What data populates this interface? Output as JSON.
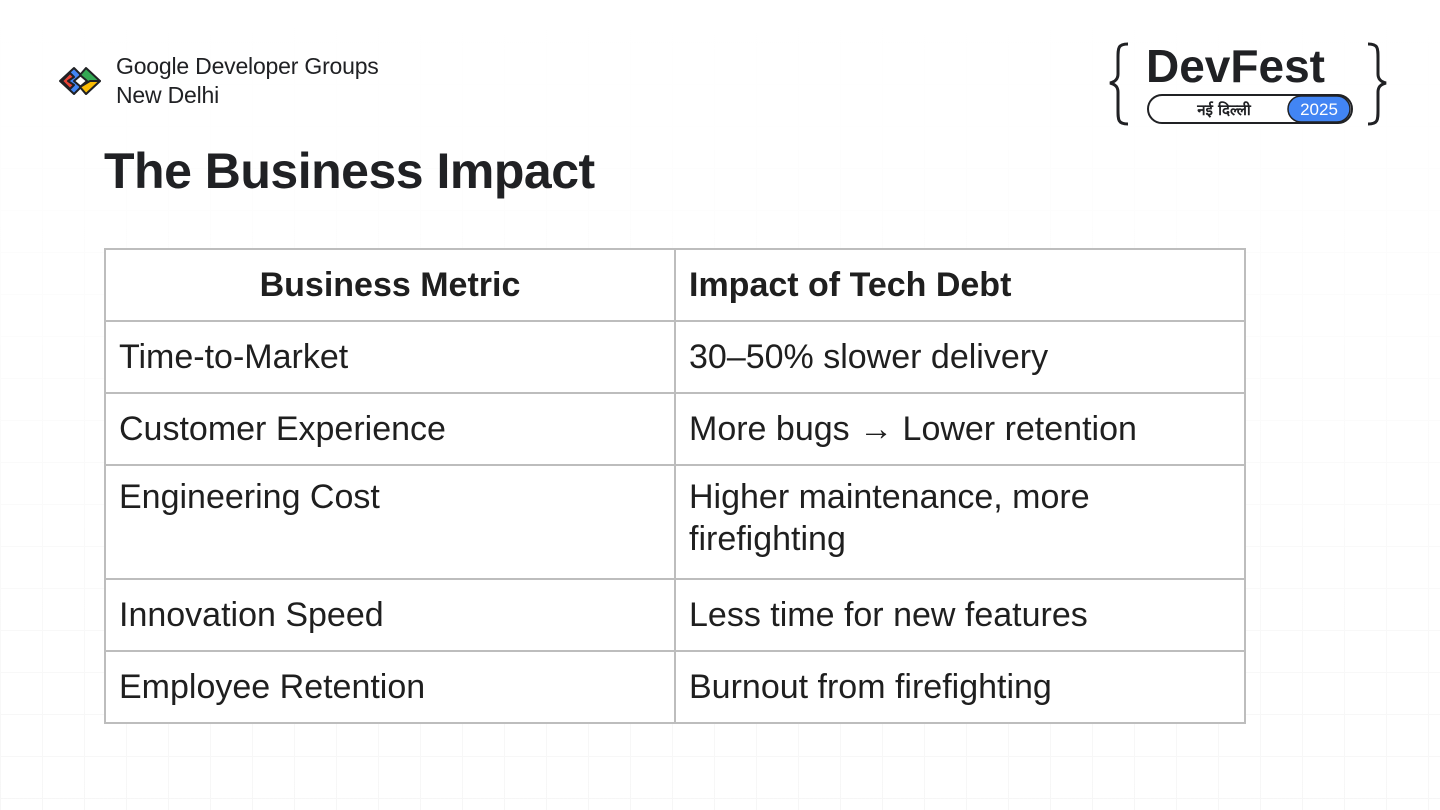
{
  "branding": {
    "gdg_line1": "Google Developer Groups",
    "gdg_line2": "New Delhi",
    "devfest_title": "DevFest",
    "devfest_city": "नई दिल्ली",
    "devfest_year": "2025",
    "colors": {
      "red": "#ea4335",
      "blue": "#4285f4",
      "green": "#34a853",
      "yellow": "#fbbc04",
      "year_pill": "#4285f4"
    }
  },
  "slide": {
    "title": "The Business Impact"
  },
  "table": {
    "headers": [
      "Business Metric",
      "Impact of Tech Debt"
    ],
    "rows": [
      [
        "Time-to-Market",
        "30–50% slower delivery"
      ],
      [
        "Customer Experience",
        "More bugs → Lower retention"
      ],
      [
        "Engineering Cost",
        "Higher maintenance, more firefighting"
      ],
      [
        "Innovation Speed",
        "Less time for new features"
      ],
      [
        "Employee Retention",
        "Burnout from firefighting"
      ]
    ]
  }
}
